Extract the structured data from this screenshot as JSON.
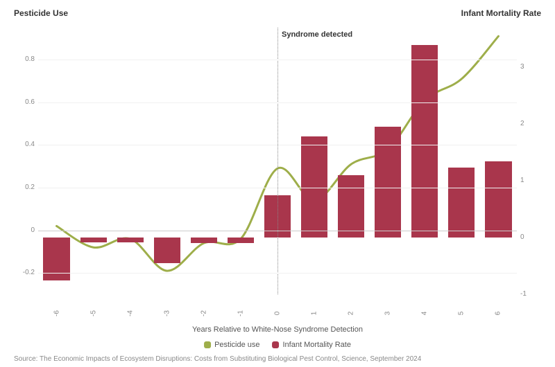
{
  "chart": {
    "type": "combo-bar-line",
    "title_left": "Pesticide Use",
    "title_right": "Infant Mortality Rate",
    "categories": [
      "-6",
      "-5",
      "-4",
      "-3",
      "-2",
      "-1",
      "0",
      "1",
      "2",
      "3",
      "4",
      "5",
      "6"
    ],
    "annotation": {
      "text": "Syndrome detected",
      "x_index": 6
    },
    "line": {
      "name": "Pesticide use",
      "values": [
        0.02,
        -0.08,
        -0.04,
        -0.19,
        -0.06,
        -0.04,
        0.29,
        0.14,
        0.31,
        0.38,
        0.61,
        0.71,
        0.91
      ],
      "color": "#9eae4a",
      "outline": "#ffffff",
      "width": 3,
      "outline_width": 6
    },
    "bars": {
      "name": "Infant Mortality Rate",
      "values": [
        -0.75,
        -0.08,
        -0.08,
        -0.45,
        -0.1,
        -0.1,
        0.75,
        1.78,
        1.1,
        1.95,
        3.4,
        1.23,
        1.35
      ],
      "color": "#a9364c",
      "width": 0.72
    },
    "axis_left": {
      "lim": [
        -0.3,
        0.95
      ],
      "ticks": [
        -0.2,
        0,
        0.2,
        0.4,
        0.6,
        0.8
      ]
    },
    "axis_right": {
      "lim": [
        -1,
        3.7
      ],
      "ticks": [
        -1,
        0,
        1,
        2,
        3
      ]
    },
    "grid_color": "#f0f0f0",
    "zero_line_color": "#cccccc",
    "tick_fontsize": 10,
    "title_fontsize": 12,
    "x_label": "Years Relative to White-Nose Syndrome Detection",
    "background_color": "#ffffff"
  },
  "legend": {
    "items": [
      {
        "label": "Pesticide use",
        "swatch_color": "#9eae4a",
        "kind": "line"
      },
      {
        "label": "Infant Mortality Rate",
        "swatch_color": "#a9364c",
        "kind": "bar"
      }
    ]
  },
  "source": "Source: The Economic Impacts of Ecosystem Disruptions: Costs from Substituting Biological Pest Control, Science, September 2024"
}
